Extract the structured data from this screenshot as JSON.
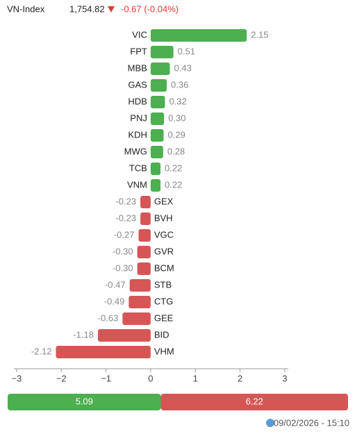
{
  "index": {
    "name": "VN-Index",
    "value": "1,754.82",
    "change": "-0.67 (-0.04%)"
  },
  "chart_data": {
    "type": "bar",
    "orientation": "horizontal",
    "categories": [
      "VIC",
      "FPT",
      "MBB",
      "GAS",
      "HDB",
      "PNJ",
      "KDH",
      "MWG",
      "TCB",
      "VNM",
      "GEX",
      "BVH",
      "VGC",
      "GVR",
      "BCM",
      "STB",
      "CTG",
      "GEE",
      "BID",
      "VHM"
    ],
    "values": [
      2.15,
      0.51,
      0.43,
      0.36,
      0.32,
      0.3,
      0.29,
      0.28,
      0.22,
      0.22,
      -0.23,
      -0.23,
      -0.27,
      -0.3,
      -0.3,
      -0.47,
      -0.49,
      -0.63,
      -1.18,
      -2.12
    ],
    "value_labels": [
      "2.15",
      "0.51",
      "0.43",
      "0.36",
      "0.32",
      "0.30",
      "0.29",
      "0.28",
      "0.22",
      "0.22",
      "-0.23",
      "-0.23",
      "-0.27",
      "-0.30",
      "-0.30",
      "-0.47",
      "-0.49",
      "-0.63",
      "-1.18",
      "-2.12"
    ],
    "positive_color": "#4caf50",
    "negative_color": "#d65656",
    "xlim": [
      -3.06,
      3.08
    ],
    "xticks": [
      {
        "value": -3,
        "label": "−3"
      },
      {
        "value": -2,
        "label": "−2"
      },
      {
        "value": -1,
        "label": "−1"
      },
      0,
      1,
      2,
      3
    ]
  },
  "summary": {
    "positive": 5.09,
    "negative": 6.22
  },
  "timestamp": "09/02/2026 - 15:10"
}
